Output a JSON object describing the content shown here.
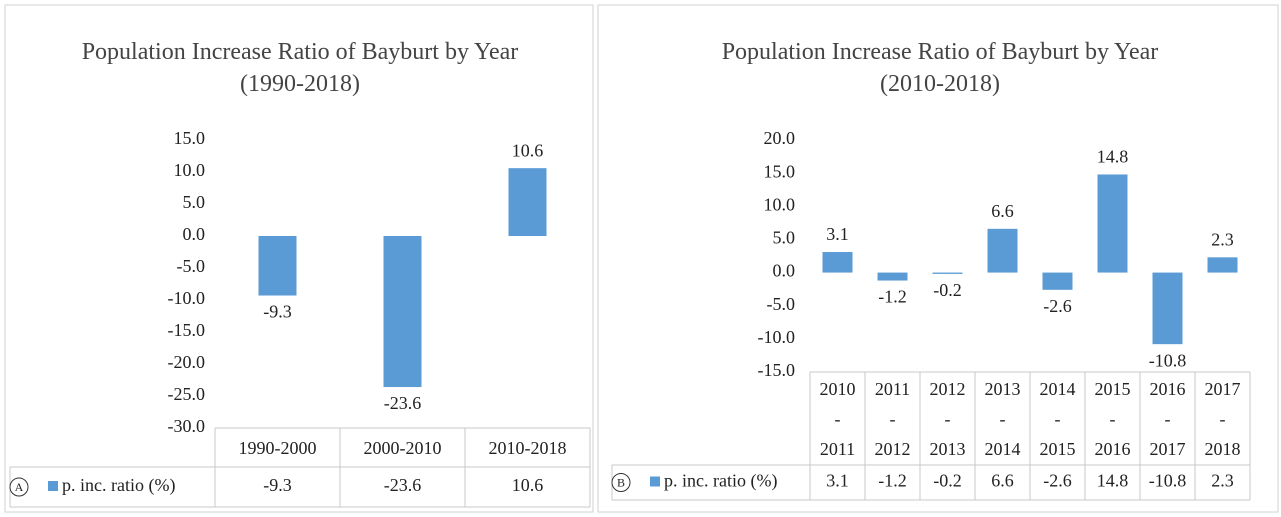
{
  "chart_data": [
    {
      "type": "bar",
      "panel_label": "A",
      "title": "Population Increase Ratio of Bayburt by Year (1990-2018)",
      "categories": [
        "1990-2000",
        "2000-2010",
        "2010-2018"
      ],
      "series": [
        {
          "name": "p. inc. ratio (%)",
          "color": "#5b9bd5",
          "values": [
            -9.3,
            -23.6,
            10.6
          ]
        }
      ],
      "ylim": [
        -30,
        15
      ],
      "yticks": [
        {
          "value": 15,
          "label": "15.0"
        },
        {
          "value": 10,
          "label": "10.0"
        },
        {
          "value": 5,
          "label": "5.0"
        },
        {
          "value": 0,
          "label": "0.0"
        },
        {
          "value": -5,
          "label": "-5.0"
        },
        {
          "value": -10,
          "label": "-10.0"
        },
        {
          "value": -15,
          "label": "-15.0"
        },
        {
          "value": -20,
          "label": "-20.0"
        },
        {
          "value": -25,
          "label": "-25.0"
        },
        {
          "value": -30,
          "label": "-30.0"
        }
      ],
      "grid": false
    },
    {
      "type": "bar",
      "panel_label": "B",
      "title": "Population Increase Ratio of Bayburt by Year (2010-2018)",
      "categories": [
        "2010 - 2011",
        "2011 - 2012",
        "2012 - 2013",
        "2013 - 2014",
        "2014 - 2015",
        "2015 - 2016",
        "2016 - 2017",
        "2017 - 2018"
      ],
      "series": [
        {
          "name": "p. inc. ratio (%)",
          "color": "#5b9bd5",
          "values": [
            3.1,
            -1.2,
            -0.2,
            6.6,
            -2.6,
            14.8,
            -10.8,
            2.3
          ]
        }
      ],
      "ylim": [
        -15,
        20
      ],
      "yticks": [
        {
          "value": 20,
          "label": "20.0"
        },
        {
          "value": 15,
          "label": "15.0"
        },
        {
          "value": 10,
          "label": "10.0"
        },
        {
          "value": 5,
          "label": "5.0"
        },
        {
          "value": 0,
          "label": "0.0"
        },
        {
          "value": -5,
          "label": "-5.0"
        },
        {
          "value": -10,
          "label": "-10.0"
        },
        {
          "value": -15,
          "label": "-15.0"
        }
      ],
      "grid": false
    }
  ]
}
